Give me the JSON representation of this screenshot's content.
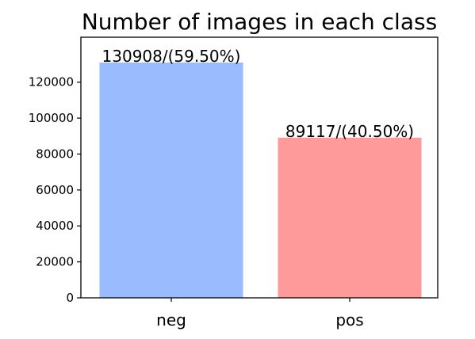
{
  "chart_data": {
    "type": "bar",
    "title": "Number of images in each class",
    "xlabel": "",
    "ylabel": "",
    "categories": [
      "neg",
      "pos"
    ],
    "values": [
      130908,
      89117
    ],
    "data_labels": [
      "130908/(59.50%)",
      "89117/(40.50%)"
    ],
    "colors": [
      "#9bbbff",
      "#ff9a9a"
    ],
    "ylim": [
      0,
      145000
    ],
    "yticks": [
      0,
      20000,
      40000,
      60000,
      80000,
      100000,
      120000
    ],
    "ytick_labels": [
      "0",
      "20000",
      "40000",
      "60000",
      "80000",
      "100000",
      "120000"
    ],
    "grid": false,
    "legend": "none"
  }
}
